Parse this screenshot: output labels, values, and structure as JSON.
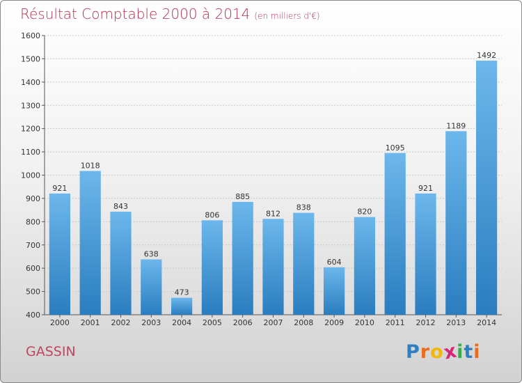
{
  "title": "Résultat Comptable 2000 à 2014",
  "title_unit": "(en milliers d'€)",
  "town": "GASSIN",
  "logo": {
    "text": "Proxiti",
    "letters": [
      "P",
      "r",
      "o",
      "x",
      "i",
      "t",
      "i"
    ],
    "colors": [
      "#2f7fc1",
      "#e86b1e",
      "#f2b705",
      "#d6267a",
      "#3bab48",
      "#2f7fc1",
      "#e86b1e"
    ]
  },
  "colors": {
    "bar_top": "#6cb7ec",
    "bar_bottom": "#2a7dbf",
    "title": "#b0324f"
  },
  "chart_data": {
    "type": "bar",
    "categories": [
      "2000",
      "2001",
      "2002",
      "2003",
      "2004",
      "2005",
      "2006",
      "2007",
      "2008",
      "2009",
      "2010",
      "2011",
      "2012",
      "2013",
      "2014"
    ],
    "values": [
      921,
      1018,
      843,
      638,
      473,
      806,
      885,
      812,
      838,
      604,
      820,
      1095,
      921,
      1189,
      1492
    ],
    "ylim": [
      400,
      1600
    ],
    "yticks": [
      400,
      500,
      600,
      700,
      800,
      900,
      1000,
      1100,
      1200,
      1300,
      1400,
      1500,
      1600
    ],
    "grid": true,
    "data_labels": true
  }
}
